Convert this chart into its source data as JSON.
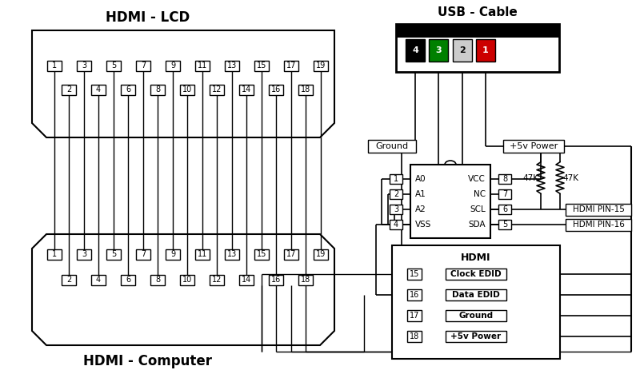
{
  "bg_color": "#ffffff",
  "hdmi_lcd_title": "HDMI - LCD",
  "hdmi_computer_title": "HDMI - Computer",
  "usb_cable_title": "USB - Cable",
  "pin_odd": [
    1,
    3,
    5,
    7,
    9,
    11,
    13,
    15,
    17,
    19
  ],
  "pin_even": [
    2,
    4,
    6,
    8,
    10,
    12,
    14,
    16,
    18
  ],
  "usb_pins": [
    {
      "num": "4",
      "color": "#000000",
      "text_color": "#ffffff"
    },
    {
      "num": "3",
      "color": "#008000",
      "text_color": "#ffffff"
    },
    {
      "num": "2",
      "color": "#cccccc",
      "text_color": "#000000"
    },
    {
      "num": "1",
      "color": "#cc0000",
      "text_color": "#ffffff"
    }
  ],
  "ic_pins_left": [
    {
      "num": "1",
      "label": "A0"
    },
    {
      "num": "2",
      "label": "A1"
    },
    {
      "num": "3",
      "label": "A2"
    },
    {
      "num": "4",
      "label": "VSS"
    }
  ],
  "ic_pins_right": [
    {
      "num": "8",
      "label": "VCC"
    },
    {
      "num": "7",
      "label": "NC"
    },
    {
      "num": "6",
      "label": "SCL"
    },
    {
      "num": "5",
      "label": "SDA"
    }
  ],
  "hdmi_box_pins": [
    {
      "num": "15",
      "label": "Clock EDID"
    },
    {
      "num": "16",
      "label": "Data EDID"
    },
    {
      "num": "17",
      "label": "Ground"
    },
    {
      "num": "18",
      "label": "+5v Power"
    }
  ]
}
